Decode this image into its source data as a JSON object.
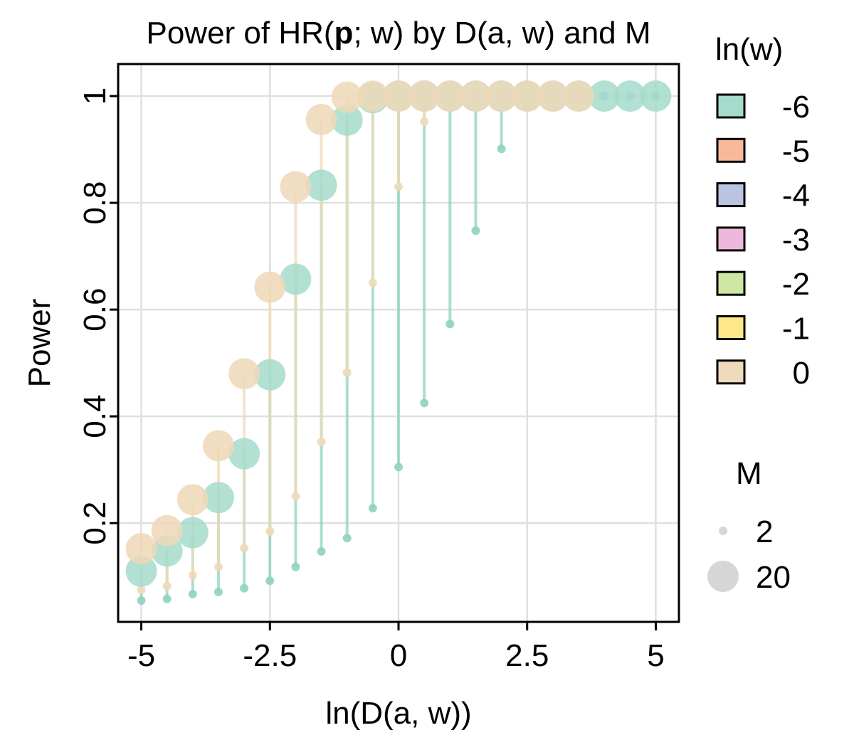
{
  "chart_data": {
    "type": "scatter",
    "title": "Power of HR(p; w) by D(a, w) and M",
    "title_parts": {
      "pre": "Power of HR(",
      "bold": "p",
      "post": "; w) by D(a, w) and M"
    },
    "xlabel": "ln(D(a, w))",
    "ylabel": "Power",
    "xlim": [
      -5.45,
      5.45
    ],
    "ylim": [
      0.015,
      1.06
    ],
    "xticks": [
      -5,
      -2.5,
      0,
      2.5,
      5
    ],
    "xtick_labels": [
      "-5",
      "-2.5",
      "0",
      "2.5",
      "5"
    ],
    "yticks": [
      0.2,
      0.4,
      0.6,
      0.8,
      1
    ],
    "ytick_labels": [
      "0.2",
      "0.4",
      "0.6",
      "0.8",
      "1"
    ],
    "grid": true,
    "stems": true,
    "legend_position": "right",
    "legend_color_title": "ln(w)",
    "legend_color_entries": [
      {
        "label": "-6",
        "color": "#a5dbcb"
      },
      {
        "label": "-5",
        "color": "#f8b99b"
      },
      {
        "label": "-4",
        "color": "#bac3e0"
      },
      {
        "label": "-3",
        "color": "#eeb8dd"
      },
      {
        "label": "-2",
        "color": "#cde7a2"
      },
      {
        "label": "-1",
        "color": "#fde88a"
      },
      {
        "label": "0",
        "color": "#eedbbc"
      }
    ],
    "legend_size_title": "M",
    "legend_size_entries": [
      "2",
      "20"
    ],
    "series": [
      {
        "name": "ln(w) = -6, M = 2",
        "lnw": "-6",
        "M": "2",
        "color": "#8fd3bf",
        "x": [
          -5,
          -4.5,
          -4,
          -3.5,
          -3,
          -2.5,
          -2,
          -1.5,
          -1,
          -0.5,
          0,
          0.5,
          1,
          1.5,
          2,
          2.5,
          3,
          3.5,
          4,
          4.5,
          5
        ],
        "y": [
          0.055,
          0.058,
          0.067,
          0.071,
          0.078,
          0.092,
          0.118,
          0.147,
          0.172,
          0.228,
          0.305,
          0.425,
          0.573,
          0.748,
          0.901,
          0.982,
          0.998,
          1.0,
          1.0,
          1.0,
          1.0
        ]
      },
      {
        "name": "ln(w) = 0, M = 2",
        "lnw": "0",
        "M": "2",
        "color": "#f0d9b8",
        "x": [
          -5,
          -4.5,
          -4,
          -3.5,
          -3,
          -2.5,
          -2,
          -1.5,
          -1,
          -0.5,
          0,
          0.5,
          1,
          1.5,
          2,
          2.5,
          3,
          3.5
        ],
        "y": [
          0.075,
          0.082,
          0.102,
          0.118,
          0.153,
          0.185,
          0.25,
          0.352,
          0.482,
          0.65,
          0.83,
          0.952,
          0.993,
          1.0,
          1.0,
          1.0,
          1.0,
          1.0
        ]
      },
      {
        "name": "ln(w) = -6, M = 20",
        "lnw": "-6",
        "M": "20",
        "color": "#a5dbcb",
        "x": [
          -5,
          -4.5,
          -4,
          -3.5,
          -3,
          -2.5,
          -2,
          -1.5,
          -1,
          -0.5,
          0,
          0.5,
          1,
          1.5,
          2,
          2.5,
          3,
          3.5,
          4,
          4.5,
          5
        ],
        "y": [
          0.11,
          0.148,
          0.182,
          0.248,
          0.33,
          0.478,
          0.657,
          0.833,
          0.955,
          0.997,
          1.0,
          1.0,
          1.0,
          1.0,
          1.0,
          1.0,
          1.0,
          1.0,
          1.0,
          1.0,
          1.0
        ]
      },
      {
        "name": "ln(w) = 0, M = 20",
        "lnw": "0",
        "M": "20",
        "color": "#eed8b7",
        "x": [
          -5,
          -4.5,
          -4,
          -3.5,
          -3,
          -2.5,
          -2,
          -1.5,
          -1,
          -0.5,
          0,
          0.5,
          1,
          1.5,
          2,
          2.5,
          3,
          3.5
        ],
        "y": [
          0.152,
          0.186,
          0.244,
          0.345,
          0.48,
          0.642,
          0.83,
          0.956,
          0.998,
          1.0,
          1.0,
          1.0,
          1.0,
          1.0,
          1.0,
          1.0,
          1.0,
          1.0
        ]
      }
    ]
  }
}
